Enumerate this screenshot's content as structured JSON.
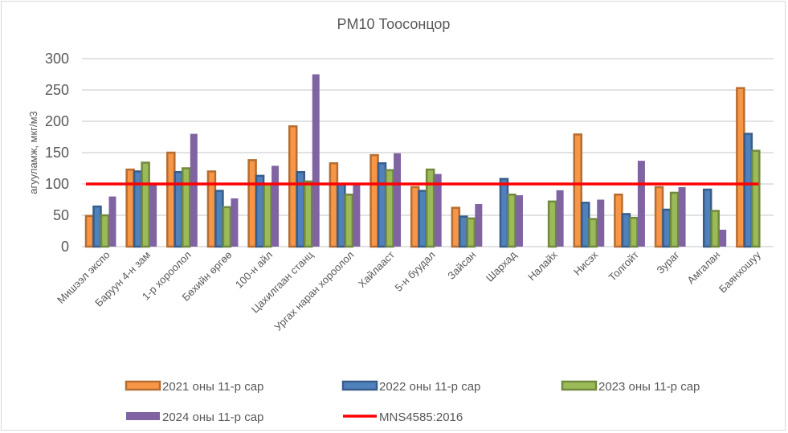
{
  "chart_data": {
    "type": "bar",
    "title": "PM10 Тоосонцор",
    "xlabel": "",
    "ylabel": "агууламж, мкг/м3",
    "ylim": [
      0,
      300
    ],
    "yticks": [
      0,
      50,
      100,
      150,
      200,
      250,
      300
    ],
    "grid": true,
    "legend_position": "bottom",
    "categories": [
      "Мишээл экспо",
      "Баруун 4-н зам",
      "1-р хороолол",
      "Бөхийн өргөө",
      "100-н айл",
      "Цахилгаан станц",
      "Ургах наран хороолол",
      "Хайлааст",
      "5-н буудал",
      "Зайсан",
      "Шархад",
      "Налайх",
      "Нисэх",
      "Толгойт",
      "Зураг",
      "Амгалан",
      "Баянхошуу"
    ],
    "series": [
      {
        "name": "2021 оны 11-р сар",
        "color": "#f79646",
        "border": "#b66d31",
        "values": [
          49,
          123,
          150,
          120,
          138,
          192,
          133,
          146,
          95,
          62,
          null,
          null,
          179,
          83,
          95,
          null,
          253
        ]
      },
      {
        "name": "2022 оны 11-р сар",
        "color": "#4f81bd",
        "border": "#385d8a",
        "values": [
          64,
          120,
          119,
          89,
          113,
          119,
          100,
          133,
          89,
          48,
          108,
          null,
          70,
          52,
          59,
          91,
          180
        ]
      },
      {
        "name": "2023 оны 11-р сар",
        "color": "#9bbb59",
        "border": "#71893f",
        "values": [
          50,
          134,
          125,
          63,
          100,
          104,
          83,
          122,
          123,
          45,
          83,
          72,
          44,
          46,
          86,
          57,
          153
        ]
      },
      {
        "name": "2024 оны 11-р сар",
        "color": "#8064a2",
        "border": "#8064a2",
        "values": [
          80,
          100,
          180,
          77,
          129,
          275,
          100,
          149,
          116,
          68,
          82,
          90,
          75,
          137,
          95,
          27,
          null
        ]
      }
    ],
    "reference_line": {
      "name": "MNS4585:2016",
      "value": 100,
      "color": "#ff0000"
    }
  }
}
